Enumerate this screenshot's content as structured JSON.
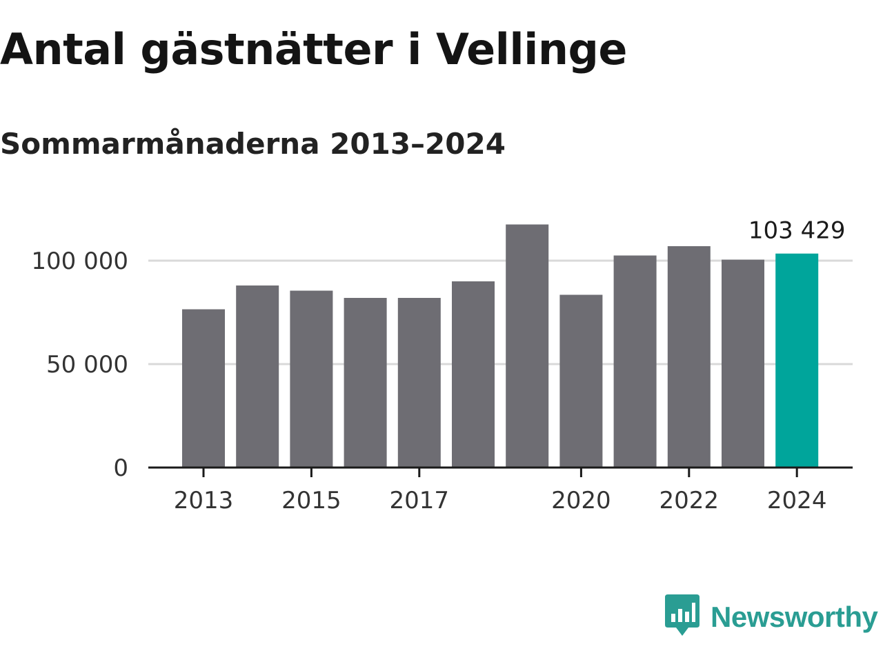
{
  "header": {
    "title": "Antal gästnätter i Vellinge",
    "subtitle": "Sommarmånaderna 2013–2024"
  },
  "brand": {
    "name": "Newsworthy",
    "icon": "bar-chart-speech-bubble-icon",
    "color": "#2a9d93"
  },
  "colors": {
    "bar": "#6e6d73",
    "highlight": "#00a59b",
    "grid": "#d9d9d9",
    "axis": "#1a1a1a"
  },
  "chart_data": {
    "type": "bar",
    "title": "Antal gästnätter i Vellinge",
    "subtitle": "Sommarmånaderna 2013–2024",
    "xlabel": "",
    "ylabel": "",
    "categories": [
      "2013",
      "2014",
      "2015",
      "2016",
      "2017",
      "2018",
      "2019",
      "2020",
      "2021",
      "2022",
      "2023",
      "2024"
    ],
    "values": [
      76500,
      88000,
      85500,
      82000,
      82000,
      90000,
      117500,
      83500,
      102500,
      107000,
      100500,
      103429
    ],
    "highlight_index": 11,
    "data_labels": [
      {
        "index": 11,
        "text": "103 429"
      }
    ],
    "x_tick_labels": [
      {
        "index": 0,
        "text": "2013"
      },
      {
        "index": 2,
        "text": "2015"
      },
      {
        "index": 4,
        "text": "2017"
      },
      {
        "index": 7,
        "text": "2020"
      },
      {
        "index": 9,
        "text": "2022"
      },
      {
        "index": 11,
        "text": "2024"
      }
    ],
    "y_ticks": [
      {
        "value": 0,
        "text": "0"
      },
      {
        "value": 50000,
        "text": "50 000"
      },
      {
        "value": 100000,
        "text": "100 000"
      }
    ],
    "ylim": [
      0,
      118000
    ],
    "grid": true,
    "legend": "none"
  }
}
